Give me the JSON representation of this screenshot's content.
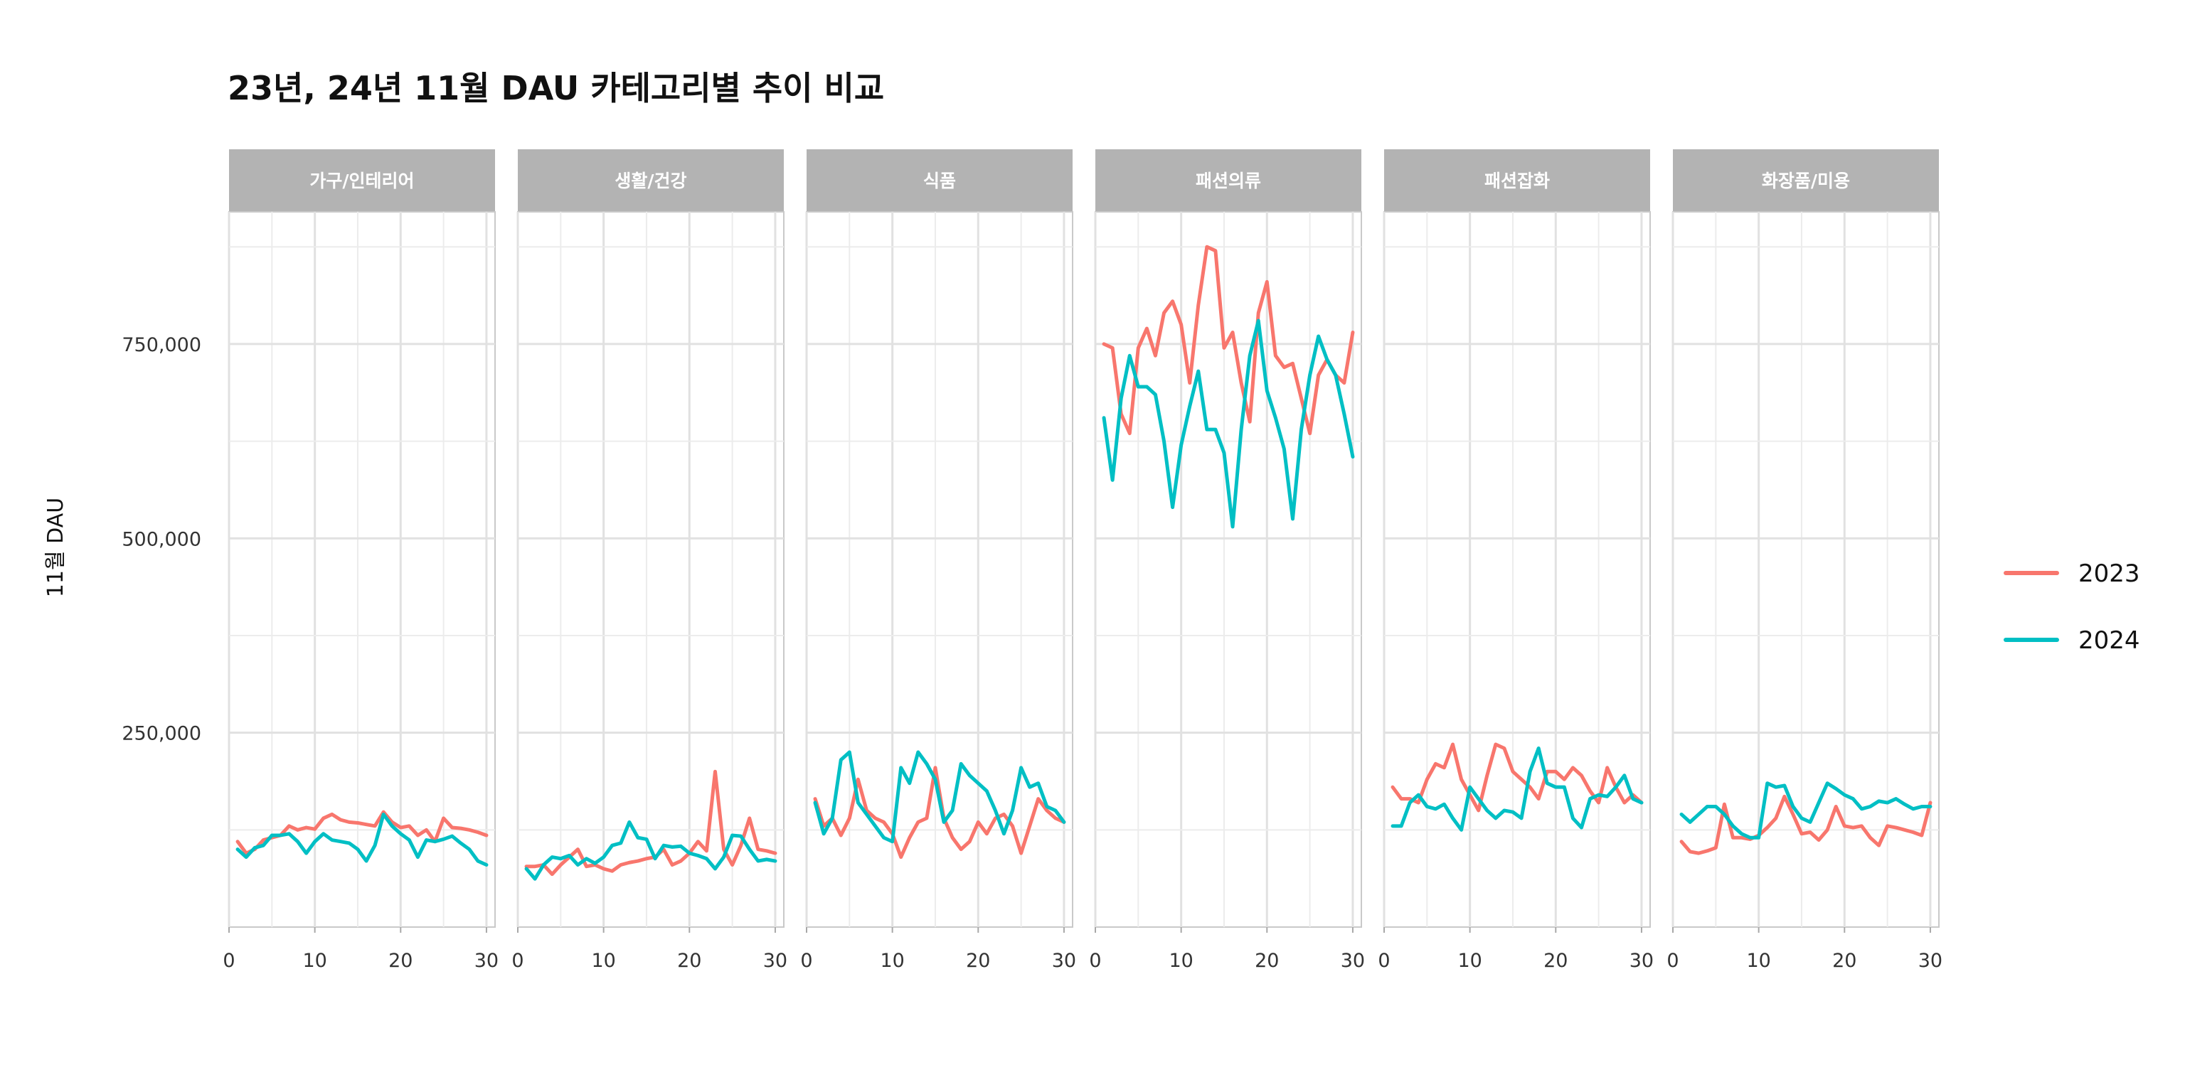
{
  "chart_data": {
    "type": "line",
    "title": "23년, 24년 11월 DAU 카테고리별 추이 비교",
    "xlabel": "",
    "ylabel": "11월 DAU",
    "xlim": [
      0,
      31
    ],
    "ylim": [
      0,
      920000
    ],
    "x_ticks": [
      0,
      10,
      20,
      30
    ],
    "y_ticks": [
      250000,
      500000,
      750000
    ],
    "y_tick_labels": [
      "250,000",
      "500,000",
      "750,000"
    ],
    "legend": {
      "position": "right",
      "entries": [
        {
          "name": "2023",
          "color": "#F8766D"
        },
        {
          "name": "2024",
          "color": "#00BFC4"
        }
      ]
    },
    "x": [
      1,
      2,
      3,
      4,
      5,
      6,
      7,
      8,
      9,
      10,
      11,
      12,
      13,
      14,
      15,
      16,
      17,
      18,
      19,
      20,
      21,
      22,
      23,
      24,
      25,
      26,
      27,
      28,
      29,
      30
    ],
    "panels": [
      {
        "label": "가구/인테리어",
        "series": [
          {
            "name": "2023",
            "values": [
              110000,
              95000,
              100000,
              112000,
              115000,
              118000,
              130000,
              125000,
              128000,
              126000,
              140000,
              145000,
              138000,
              135000,
              134000,
              132000,
              130000,
              148000,
              135000,
              128000,
              130000,
              118000,
              125000,
              110000,
              140000,
              128000,
              127000,
              125000,
              122000,
              118000
            ]
          },
          {
            "name": "2024",
            "values": [
              100000,
              90000,
              102000,
              105000,
              118000,
              118000,
              120000,
              110000,
              95000,
              110000,
              120000,
              112000,
              110000,
              108000,
              100000,
              85000,
              105000,
              145000,
              130000,
              120000,
              112000,
              90000,
              112000,
              110000,
              113000,
              117000,
              108000,
              100000,
              85000,
              80000
            ]
          }
        ]
      },
      {
        "label": "생활/건강",
        "series": [
          {
            "name": "2023",
            "values": [
              78000,
              78000,
              80000,
              68000,
              80000,
              90000,
              100000,
              78000,
              80000,
              75000,
              72000,
              80000,
              83000,
              85000,
              88000,
              90000,
              100000,
              80000,
              85000,
              95000,
              110000,
              98000,
              200000,
              100000,
              80000,
              105000,
              140000,
              100000,
              98000,
              95000
            ]
          },
          {
            "name": "2024",
            "values": [
              75000,
              62000,
              80000,
              90000,
              88000,
              92000,
              80000,
              88000,
              82000,
              90000,
              105000,
              108000,
              135000,
              115000,
              113000,
              88000,
              105000,
              103000,
              104000,
              95000,
              92000,
              88000,
              75000,
              90000,
              118000,
              117000,
              100000,
              85000,
              87000,
              85000
            ]
          }
        ]
      },
      {
        "label": "식품",
        "series": [
          {
            "name": "2023",
            "values": [
              165000,
              130000,
              140000,
              118000,
              140000,
              190000,
              150000,
              140000,
              135000,
              120000,
              90000,
              115000,
              135000,
              140000,
              205000,
              140000,
              115000,
              100000,
              110000,
              135000,
              120000,
              140000,
              145000,
              130000,
              95000,
              130000,
              165000,
              150000,
              140000,
              135000
            ]
          },
          {
            "name": "2024",
            "values": [
              160000,
              120000,
              140000,
              215000,
              225000,
              160000,
              145000,
              130000,
              115000,
              110000,
              205000,
              185000,
              225000,
              210000,
              190000,
              135000,
              150000,
              210000,
              195000,
              185000,
              175000,
              150000,
              120000,
              150000,
              205000,
              180000,
              185000,
              155000,
              150000,
              135000
            ]
          }
        ]
      },
      {
        "label": "패션의류",
        "series": [
          {
            "name": "2023",
            "values": [
              750000,
              745000,
              660000,
              635000,
              745000,
              770000,
              735000,
              790000,
              805000,
              775000,
              700000,
              800000,
              875000,
              870000,
              745000,
              765000,
              700000,
              650000,
              790000,
              830000,
              735000,
              720000,
              725000,
              680000,
              635000,
              710000,
              730000,
              710000,
              700000,
              765000
            ]
          },
          {
            "name": "2024",
            "values": [
              655000,
              575000,
              680000,
              735000,
              695000,
              695000,
              685000,
              625000,
              540000,
              620000,
              670000,
              715000,
              640000,
              640000,
              610000,
              515000,
              640000,
              735000,
              780000,
              690000,
              655000,
              615000,
              525000,
              640000,
              710000,
              760000,
              730000,
              710000,
              660000,
              605000
            ]
          }
        ]
      },
      {
        "label": "패션잡화",
        "series": [
          {
            "name": "2023",
            "values": [
              180000,
              165000,
              165000,
              160000,
              190000,
              210000,
              205000,
              235000,
              190000,
              170000,
              150000,
              195000,
              235000,
              230000,
              200000,
              190000,
              180000,
              165000,
              200000,
              200000,
              190000,
              205000,
              195000,
              175000,
              160000,
              205000,
              180000,
              160000,
              170000,
              160000
            ]
          },
          {
            "name": "2024",
            "values": [
              130000,
              130000,
              160000,
              170000,
              155000,
              152000,
              158000,
              140000,
              125000,
              180000,
              165000,
              150000,
              140000,
              150000,
              148000,
              140000,
              200000,
              230000,
              185000,
              180000,
              180000,
              140000,
              128000,
              165000,
              170000,
              168000,
              180000,
              195000,
              165000,
              160000
            ]
          }
        ]
      },
      {
        "label": "화장품/미용",
        "series": [
          {
            "name": "2023",
            "values": [
              110000,
              97000,
              95000,
              98000,
              102000,
              158000,
              115000,
              115000,
              113000,
              118000,
              128000,
              140000,
              168000,
              145000,
              120000,
              122000,
              112000,
              125000,
              155000,
              130000,
              128000,
              130000,
              115000,
              105000,
              130000,
              128000,
              125000,
              122000,
              118000,
              160000
            ]
          },
          {
            "name": "2024",
            "values": [
              145000,
              135000,
              145000,
              155000,
              155000,
              145000,
              130000,
              120000,
              115000,
              115000,
              185000,
              180000,
              182000,
              155000,
              140000,
              135000,
              160000,
              185000,
              178000,
              170000,
              165000,
              152000,
              155000,
              162000,
              160000,
              165000,
              158000,
              152000,
              155000,
              155000
            ]
          }
        ]
      }
    ]
  }
}
